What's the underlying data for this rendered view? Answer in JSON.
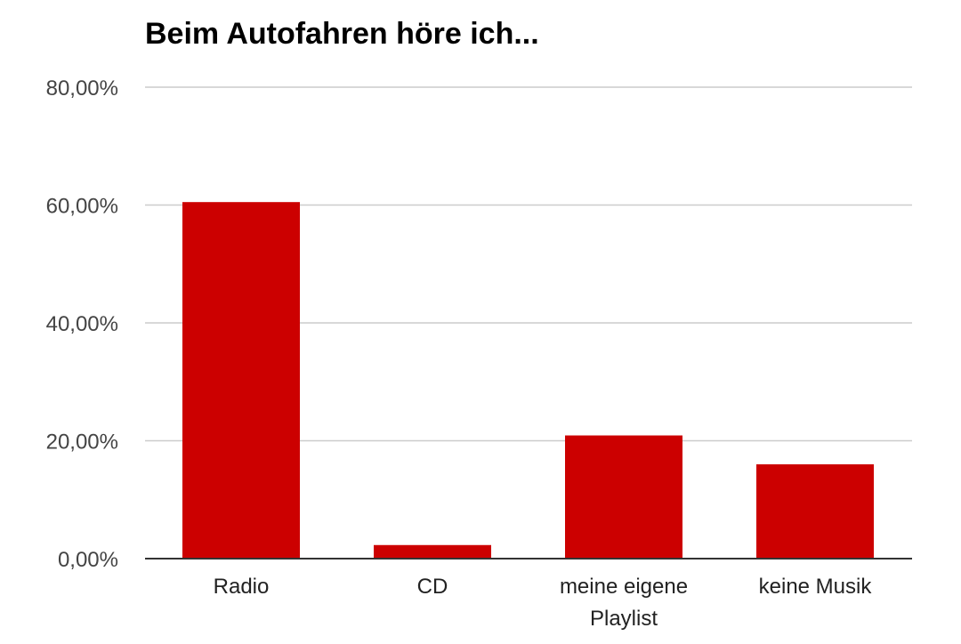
{
  "chart_data": {
    "type": "bar",
    "title": "Beim Autofahren höre ich...",
    "categories": [
      "Radio",
      "CD",
      "meine eigene Playlist",
      "keine Musik"
    ],
    "category_label_lines": [
      [
        "Radio"
      ],
      [
        "CD"
      ],
      [
        "meine eigene",
        "Playlist"
      ],
      [
        "keine Musik"
      ]
    ],
    "values": [
      60.5,
      2.3,
      20.9,
      16.0
    ],
    "yticks": [
      "0,00%",
      "20,00%",
      "40,00%",
      "60,00%",
      "80,00%"
    ],
    "ytick_values": [
      0,
      20,
      40,
      60,
      80
    ],
    "ylim": [
      0,
      80
    ],
    "xlabel": "",
    "ylabel": "",
    "grid": true,
    "legend": "none",
    "bar_color": "#cc0000"
  }
}
